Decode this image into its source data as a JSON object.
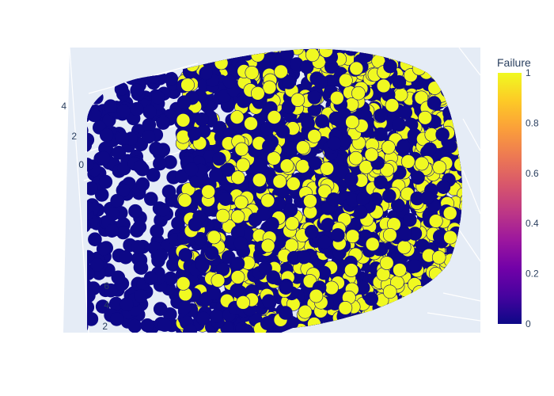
{
  "chart_data": {
    "type": "scatter",
    "subtype": "3d-scatter",
    "colorbar": {
      "title": "Failure",
      "colorscale": [
        "#0d0887",
        "#46039f",
        "#7201a8",
        "#9c179e",
        "#bd3786",
        "#d8576b",
        "#ed7953",
        "#fb9f3a",
        "#fdca26",
        "#f0f921"
      ],
      "range": [
        0,
        1
      ],
      "ticks": [
        "0",
        "0.2",
        "0.4",
        "0.6",
        "0.8",
        "1"
      ]
    },
    "axes": {
      "left_upper_ticks": [
        "4",
        "2",
        "0"
      ],
      "left_lower_ticks": [
        "6",
        "4",
        "2"
      ]
    },
    "series": [
      {
        "value": 0,
        "color": "#0d0887",
        "description": "dense cloud, concentrated on left side"
      },
      {
        "value": 1,
        "color": "#f0f921",
        "description": "scattered in right half of cloud"
      }
    ],
    "colors": {
      "scene_bg": "#e5ecf6",
      "grid": "#ffffff",
      "text": "#2a3f5f"
    }
  }
}
